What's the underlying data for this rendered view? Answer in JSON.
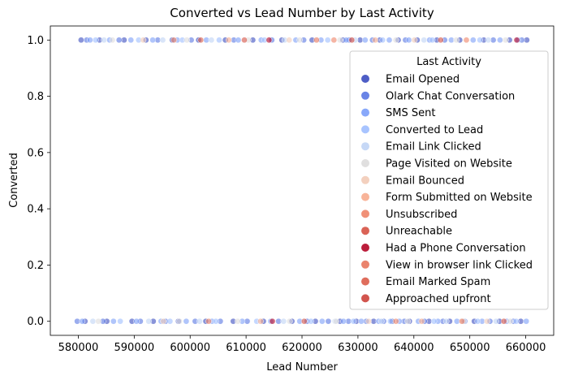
{
  "chart_data": {
    "type": "scatter",
    "title": "Converted vs Lead Number by Last Activity",
    "xlabel": "Lead Number",
    "ylabel": "Converted",
    "xlim": [
      575000,
      665000
    ],
    "ylim": [
      -0.05,
      1.05
    ],
    "x_ticks": [
      580000,
      590000,
      600000,
      610000,
      620000,
      630000,
      640000,
      650000,
      660000
    ],
    "x_tick_labels": [
      "580000",
      "590000",
      "600000",
      "610000",
      "620000",
      "630000",
      "640000",
      "650000",
      "660000"
    ],
    "y_ticks": [
      0.0,
      0.2,
      0.4,
      0.6,
      0.8,
      1.0
    ],
    "y_tick_labels": [
      "0.0",
      "0.2",
      "0.4",
      "0.6",
      "0.8",
      "1.0"
    ],
    "grid": false,
    "legend": {
      "title": "Last Activity",
      "placement": "right"
    },
    "series": [
      {
        "name": "Email Opened",
        "color": "#3b4cc0",
        "points": [
          [
            580500,
            1
          ],
          [
            583800,
            1
          ],
          [
            588200,
            1
          ],
          [
            592100,
            1
          ],
          [
            596800,
            1
          ],
          [
            601500,
            1
          ],
          [
            606300,
            1
          ],
          [
            611200,
            1
          ],
          [
            616400,
            1
          ],
          [
            621800,
            1
          ],
          [
            627300,
            1
          ],
          [
            630400,
            1
          ],
          [
            633900,
            1
          ],
          [
            637200,
            1
          ],
          [
            640600,
            1
          ],
          [
            644100,
            1
          ],
          [
            648200,
            1
          ],
          [
            652500,
            1
          ],
          [
            657100,
            1
          ],
          [
            660200,
            1
          ],
          [
            581200,
            0
          ],
          [
            585100,
            0
          ],
          [
            589600,
            0
          ],
          [
            593400,
            0
          ],
          [
            597900,
            0
          ],
          [
            602800,
            0
          ],
          [
            607700,
            0
          ],
          [
            613100,
            0
          ],
          [
            618200,
            0
          ],
          [
            622400,
            0
          ],
          [
            626800,
            0
          ],
          [
            629700,
            0
          ],
          [
            632800,
            0
          ],
          [
            636100,
            0
          ],
          [
            639200,
            0
          ],
          [
            642700,
            0
          ],
          [
            646400,
            0
          ],
          [
            650800,
            0
          ],
          [
            655300,
            0
          ],
          [
            659100,
            0
          ]
        ]
      },
      {
        "name": "Olark Chat Conversation",
        "color": "#5977e3",
        "points": [
          [
            581500,
            1
          ],
          [
            587300,
            1
          ],
          [
            594200,
            1
          ],
          [
            600200,
            1
          ],
          [
            607800,
            1
          ],
          [
            614600,
            1
          ],
          [
            620300,
            1
          ],
          [
            628400,
            1
          ],
          [
            632600,
            1
          ],
          [
            638500,
            1
          ],
          [
            645500,
            1
          ],
          [
            654200,
            1
          ],
          [
            659300,
            1
          ],
          [
            579800,
            0
          ],
          [
            584400,
            0
          ],
          [
            591100,
            0
          ],
          [
            595600,
            0
          ],
          [
            600900,
            0
          ],
          [
            605400,
            0
          ],
          [
            610200,
            0
          ],
          [
            615800,
            0
          ],
          [
            620900,
            0
          ],
          [
            624700,
            0
          ],
          [
            628300,
            0
          ],
          [
            631500,
            0
          ],
          [
            634600,
            0
          ],
          [
            638300,
            0
          ],
          [
            641900,
            0
          ],
          [
            645200,
            0
          ],
          [
            649100,
            0
          ],
          [
            653600,
            0
          ],
          [
            657800,
            0
          ]
        ]
      },
      {
        "name": "SMS Sent",
        "color": "#7b9ff9",
        "points": [
          [
            582100,
            1
          ],
          [
            585600,
            1
          ],
          [
            589400,
            1
          ],
          [
            593300,
            1
          ],
          [
            597700,
            1
          ],
          [
            602900,
            1
          ],
          [
            608600,
            1
          ],
          [
            612700,
            1
          ],
          [
            618900,
            1
          ],
          [
            623400,
            1
          ],
          [
            627900,
            1
          ],
          [
            631300,
            1
          ],
          [
            635600,
            1
          ],
          [
            639100,
            1
          ],
          [
            642800,
            1
          ],
          [
            646700,
            1
          ],
          [
            650600,
            1
          ],
          [
            655400,
            1
          ],
          [
            658600,
            1
          ],
          [
            580700,
            0
          ],
          [
            586300,
            0
          ],
          [
            590400,
            0
          ],
          [
            594800,
            0
          ],
          [
            599300,
            0
          ],
          [
            603900,
            0
          ],
          [
            609300,
            0
          ],
          [
            614400,
            0
          ],
          [
            619600,
            0
          ],
          [
            623600,
            0
          ],
          [
            627400,
            0
          ],
          [
            630600,
            0
          ],
          [
            633700,
            0
          ],
          [
            637400,
            0
          ],
          [
            640800,
            0
          ],
          [
            644300,
            0
          ],
          [
            647700,
            0
          ],
          [
            652200,
            0
          ],
          [
            656600,
            0
          ],
          [
            660100,
            0
          ]
        ]
      },
      {
        "name": "Converted to Lead",
        "color": "#9ebeff",
        "points": [
          [
            583100,
            1
          ],
          [
            590800,
            1
          ],
          [
            598600,
            1
          ],
          [
            605200,
            1
          ],
          [
            613300,
            1
          ],
          [
            624600,
            1
          ],
          [
            634400,
            1
          ],
          [
            643300,
            1
          ],
          [
            651800,
            1
          ],
          [
            587500,
            0
          ],
          [
            596400,
            0
          ],
          [
            604600,
            0
          ],
          [
            611900,
            0
          ],
          [
            621600,
            0
          ],
          [
            629200,
            0
          ],
          [
            635800,
            0
          ],
          [
            643600,
            0
          ],
          [
            651400,
            0
          ],
          [
            658300,
            0
          ]
        ]
      },
      {
        "name": "Email Link Clicked",
        "color": "#c0d4f5",
        "points": [
          [
            584600,
            1
          ],
          [
            595100,
            1
          ],
          [
            603800,
            1
          ],
          [
            616900,
            1
          ],
          [
            629500,
            1
          ],
          [
            641800,
            1
          ],
          [
            653300,
            1
          ],
          [
            582600,
            0
          ],
          [
            592600,
            0
          ],
          [
            601700,
            0
          ],
          [
            616700,
            0
          ],
          [
            625900,
            0
          ],
          [
            634200,
            0
          ],
          [
            645800,
            0
          ],
          [
            654700,
            0
          ]
        ]
      },
      {
        "name": "Page Visited on Website",
        "color": "#dddcdc",
        "points": [
          [
            586100,
            1
          ],
          [
            599400,
            1
          ],
          [
            610400,
            1
          ],
          [
            619600,
            1
          ],
          [
            626800,
            1
          ],
          [
            636800,
            1
          ],
          [
            647600,
            1
          ],
          [
            656400,
            1
          ],
          [
            583600,
            0
          ],
          [
            598100,
            0
          ],
          [
            608500,
            0
          ],
          [
            617800,
            0
          ],
          [
            626100,
            0
          ],
          [
            638900,
            0
          ],
          [
            648900,
            0
          ],
          [
            657200,
            0
          ]
        ]
      },
      {
        "name": "Email Bounced",
        "color": "#f2cbb7",
        "points": [
          [
            591600,
            1
          ],
          [
            617700,
            1
          ],
          [
            640100,
            1
          ],
          [
            595200,
            0
          ],
          [
            631900,
            0
          ],
          [
            653100,
            0
          ]
        ]
      },
      {
        "name": "Form Submitted on Website",
        "color": "#f7ac8e",
        "points": [
          [
            606900,
            1
          ],
          [
            633100,
            1
          ],
          [
            612600,
            0
          ],
          [
            641400,
            0
          ]
        ]
      },
      {
        "name": "Unsubscribed",
        "color": "#ee8468",
        "points": [
          [
            597100,
            1
          ],
          [
            625700,
            1
          ],
          [
            649400,
            1
          ],
          [
            603300,
            0
          ],
          [
            636800,
            0
          ]
        ]
      },
      {
        "name": "Unreachable",
        "color": "#d65244",
        "points": [
          [
            609700,
            1
          ],
          [
            644800,
            1
          ],
          [
            620400,
            0
          ],
          [
            656100,
            0
          ]
        ]
      },
      {
        "name": "Had a Phone Conversation",
        "color": "#b40426",
        "points": [
          [
            614100,
            1
          ],
          [
            658400,
            1
          ],
          [
            614700,
            0
          ]
        ]
      },
      {
        "name": "View in browser link Clicked",
        "color": "#e8765c",
        "points": [
          [
            622600,
            1
          ],
          [
            648600,
            0
          ]
        ]
      },
      {
        "name": "Email Marked Spam",
        "color": "#dc5d4a",
        "points": [
          [
            601900,
            1
          ]
        ]
      },
      {
        "name": "Approached upfront",
        "color": "#cd423b",
        "points": [
          [
            628900,
            1
          ]
        ]
      }
    ]
  }
}
